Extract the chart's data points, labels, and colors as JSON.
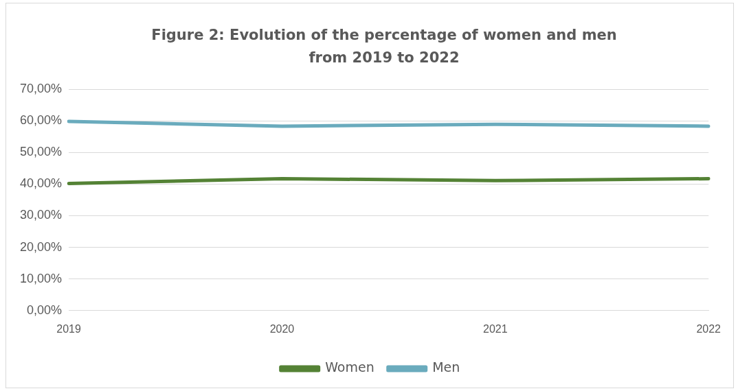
{
  "chart_data": {
    "type": "line",
    "title": "Figure 2: Evolution of the percentage of women and men from 2019 to 2022",
    "categories": [
      "2019",
      "2020",
      "2021",
      "2022"
    ],
    "series": [
      {
        "name": "Women",
        "color": "#548235",
        "values": [
          40.2,
          41.7,
          41.1,
          41.7
        ]
      },
      {
        "name": "Men",
        "color": "#6aabbd",
        "values": [
          59.8,
          58.3,
          58.9,
          58.3
        ]
      }
    ],
    "ylim": [
      0,
      70
    ],
    "yticks": [
      {
        "value": 0,
        "label": "0,00%"
      },
      {
        "value": 10,
        "label": "10,00%"
      },
      {
        "value": 20,
        "label": "20,00%"
      },
      {
        "value": 30,
        "label": "30,00%"
      },
      {
        "value": 40,
        "label": "40,00%"
      },
      {
        "value": 50,
        "label": "50,00%"
      },
      {
        "value": 60,
        "label": "60,00%"
      },
      {
        "value": 70,
        "label": "70,00%"
      }
    ],
    "grid": "y",
    "legend": "bottom",
    "marker": "none",
    "line_style": "solid"
  }
}
